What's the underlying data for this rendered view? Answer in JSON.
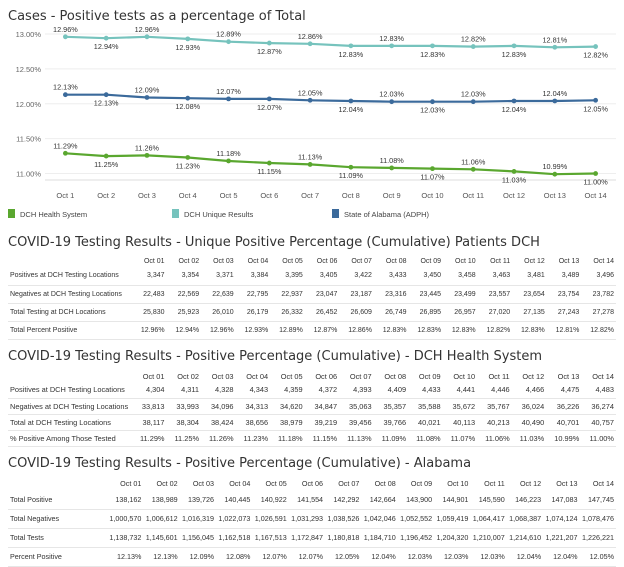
{
  "colors": {
    "dch_health_system": "#5aa72f",
    "dch_unique": "#76c3bd",
    "alabama": "#3b6a9b"
  },
  "chart_data": {
    "type": "line",
    "title": "Cases - Positive tests as a percentage of Total",
    "categories": [
      "Oct 1",
      "Oct 2",
      "Oct 3",
      "Oct 4",
      "Oct 5",
      "Oct 6",
      "Oct 7",
      "Oct 8",
      "Oct 9",
      "Oct 10",
      "Oct 11",
      "Oct 12",
      "Oct 13",
      "Oct 14"
    ],
    "y_ticks": [
      "11.00%",
      "11.50%",
      "12.00%",
      "12.50%",
      "13.00%"
    ],
    "ylim": [
      10.95,
      13.0
    ],
    "legend_position": "bottom",
    "series": [
      {
        "name": "DCH Unique Results",
        "values": [
          12.96,
          12.94,
          12.96,
          12.93,
          12.89,
          12.87,
          12.86,
          12.83,
          12.83,
          12.83,
          12.82,
          12.83,
          12.81,
          12.82
        ],
        "labels": [
          "12.96%",
          "12.94%",
          "12.96%",
          "12.93%",
          "12.89%",
          "12.87%",
          "12.86%",
          "12.83%",
          "12.83%",
          "12.83%",
          "12.82%",
          "12.83%",
          "12.81%",
          "12.82%"
        ]
      },
      {
        "name": "State of Alabama (ADPH)",
        "values": [
          12.13,
          12.13,
          12.09,
          12.08,
          12.07,
          12.07,
          12.05,
          12.04,
          12.03,
          12.03,
          12.03,
          12.04,
          12.04,
          12.05
        ],
        "labels": [
          "12.13%",
          "12.13%",
          "12.09%",
          "12.08%",
          "12.07%",
          "12.07%",
          "12.05%",
          "12.04%",
          "12.03%",
          "12.03%",
          "12.03%",
          "12.04%",
          "12.04%",
          "12.05%"
        ]
      },
      {
        "name": "DCH Health System",
        "values": [
          11.29,
          11.25,
          11.26,
          11.23,
          11.18,
          11.15,
          11.13,
          11.09,
          11.08,
          11.07,
          11.06,
          11.03,
          10.99,
          11.0
        ],
        "labels": [
          "11.29%",
          "11.25%",
          "11.26%",
          "11.23%",
          "11.18%",
          "11.15%",
          "11.13%",
          "11.09%",
          "11.08%",
          "11.07%",
          "11.06%",
          "11.03%",
          "10.99%",
          "11.00%"
        ]
      }
    ],
    "legend": [
      "DCH Health System",
      "DCH Unique Results",
      "State of Alabama (ADPH)"
    ]
  },
  "tables": [
    {
      "title": "COVID-19 Testing Results - Unique Positive Percentage (Cumulative) Patients DCH",
      "columns": [
        "Oct 01",
        "Oct 02",
        "Oct 03",
        "Oct 04",
        "Oct 05",
        "Oct 06",
        "Oct 07",
        "Oct 08",
        "Oct 09",
        "Oct 10",
        "Oct 11",
        "Oct 12",
        "Oct 13",
        "Oct 14"
      ],
      "rows": [
        {
          "label": "Positives at DCH Testing Locations",
          "values": [
            "3,347",
            "3,354",
            "3,371",
            "3,384",
            "3,395",
            "3,405",
            "3,422",
            "3,433",
            "3,450",
            "3,458",
            "3,463",
            "3,481",
            "3,489",
            "3,496"
          ]
        },
        {
          "label": "Negatives at DCH Testing Locations",
          "values": [
            "22,483",
            "22,569",
            "22,639",
            "22,795",
            "22,937",
            "23,047",
            "23,187",
            "23,316",
            "23,445",
            "23,499",
            "23,557",
            "23,654",
            "23,754",
            "23,782"
          ]
        },
        {
          "label": "Total Testing at DCH Locations",
          "values": [
            "25,830",
            "25,923",
            "26,010",
            "26,179",
            "26,332",
            "26,452",
            "26,609",
            "26,749",
            "26,895",
            "26,957",
            "27,020",
            "27,135",
            "27,243",
            "27,278"
          ]
        },
        {
          "label": "Total Percent Positive",
          "values": [
            "12.96%",
            "12.94%",
            "12.96%",
            "12.93%",
            "12.89%",
            "12.87%",
            "12.86%",
            "12.83%",
            "12.83%",
            "12.83%",
            "12.82%",
            "12.83%",
            "12.81%",
            "12.82%"
          ]
        }
      ]
    },
    {
      "title": "COVID-19 Testing Results - Positive Percentage (Cumulative) - DCH Health System",
      "columns": [
        "Oct 01",
        "Oct 02",
        "Oct 03",
        "Oct 04",
        "Oct 05",
        "Oct 06",
        "Oct 07",
        "Oct 08",
        "Oct 09",
        "Oct 10",
        "Oct 11",
        "Oct 12",
        "Oct 13",
        "Oct 14"
      ],
      "rows": [
        {
          "label": "Positives at DCH Testing Locations",
          "values": [
            "4,304",
            "4,311",
            "4,328",
            "4,343",
            "4,359",
            "4,372",
            "4,393",
            "4,409",
            "4,433",
            "4,441",
            "4,446",
            "4,466",
            "4,475",
            "4,483"
          ]
        },
        {
          "label": "Negatives at DCH Testing Locations",
          "values": [
            "33,813",
            "33,993",
            "34,096",
            "34,313",
            "34,620",
            "34,847",
            "35,063",
            "35,357",
            "35,588",
            "35,672",
            "35,767",
            "36,024",
            "36,226",
            "36,274"
          ]
        },
        {
          "label": "Total at DCH Testing Locations",
          "values": [
            "38,117",
            "38,304",
            "38,424",
            "38,656",
            "38,979",
            "39,219",
            "39,456",
            "39,766",
            "40,021",
            "40,113",
            "40,213",
            "40,490",
            "40,701",
            "40,757"
          ]
        },
        {
          "label": "% Positive Among Those Tested",
          "values": [
            "11.29%",
            "11.25%",
            "11.26%",
            "11.23%",
            "11.18%",
            "11.15%",
            "11.13%",
            "11.09%",
            "11.08%",
            "11.07%",
            "11.06%",
            "11.03%",
            "10.99%",
            "11.00%"
          ]
        }
      ]
    },
    {
      "title": "COVID-19 Testing Results - Positive Percentage (Cumulative) - Alabama",
      "columns": [
        "Oct 01",
        "Oct 02",
        "Oct 03",
        "Oct 04",
        "Oct 05",
        "Oct 06",
        "Oct 07",
        "Oct 08",
        "Oct 09",
        "Oct 10",
        "Oct 11",
        "Oct 12",
        "Oct 13",
        "Oct 14"
      ],
      "rows": [
        {
          "label": "Total Positive",
          "values": [
            "138,162",
            "138,989",
            "139,726",
            "140,445",
            "140,922",
            "141,554",
            "142,292",
            "142,664",
            "143,900",
            "144,901",
            "145,590",
            "146,223",
            "147,083",
            "147,745"
          ]
        },
        {
          "label": "Total Negatives",
          "values": [
            "1,000,570",
            "1,006,612",
            "1,016,319",
            "1,022,073",
            "1,026,591",
            "1,031,293",
            "1,038,526",
            "1,042,046",
            "1,052,552",
            "1,059,419",
            "1,064,417",
            "1,068,387",
            "1,074,124",
            "1,078,476"
          ]
        },
        {
          "label": "Total Tests",
          "values": [
            "1,138,732",
            "1,145,601",
            "1,156,045",
            "1,162,518",
            "1,167,513",
            "1,172,847",
            "1,180,818",
            "1,184,710",
            "1,196,452",
            "1,204,320",
            "1,210,007",
            "1,214,610",
            "1,221,207",
            "1,226,221"
          ]
        },
        {
          "label": "Percent Positive",
          "values": [
            "12.13%",
            "12.13%",
            "12.09%",
            "12.08%",
            "12.07%",
            "12.07%",
            "12.05%",
            "12.04%",
            "12.03%",
            "12.03%",
            "12.03%",
            "12.04%",
            "12.04%",
            "12.05%"
          ]
        }
      ]
    }
  ]
}
